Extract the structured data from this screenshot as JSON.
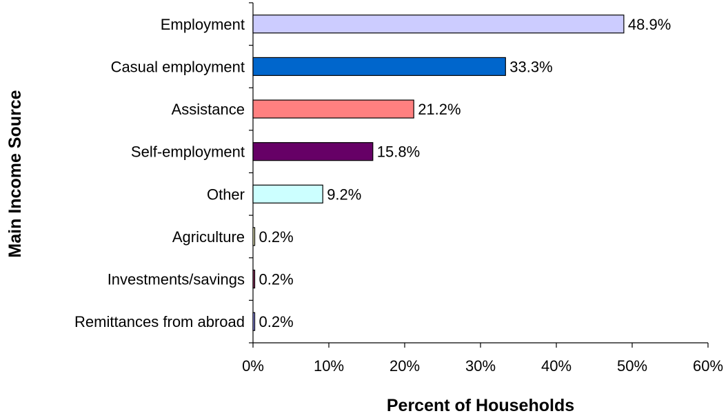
{
  "chart_data": {
    "type": "bar",
    "orientation": "horizontal",
    "categories": [
      "Employment",
      "Casual employment",
      "Assistance",
      "Self-employment",
      "Other",
      "Agriculture",
      "Investments/savings",
      "Remittances from abroad"
    ],
    "values": [
      48.9,
      33.3,
      21.2,
      15.8,
      9.2,
      0.2,
      0.2,
      0.2
    ],
    "data_labels": [
      "48.9%",
      "33.3%",
      "21.2%",
      "15.8%",
      "9.2%",
      "0.2%",
      "0.2%",
      "0.2%"
    ],
    "colors": [
      "#ccccff",
      "#0066cc",
      "#ff8080",
      "#660066",
      "#ccffff",
      "#ffffcc",
      "#993366",
      "#9999ff"
    ],
    "xlabel": "Percent of Households",
    "ylabel": "Main Income Source",
    "xlim": [
      0,
      60
    ],
    "x_ticks": [
      0,
      10,
      20,
      30,
      40,
      50,
      60
    ],
    "x_tick_labels": [
      "0%",
      "10%",
      "20%",
      "30%",
      "40%",
      "50%",
      "60%"
    ],
    "grid": false,
    "legend": "none"
  }
}
